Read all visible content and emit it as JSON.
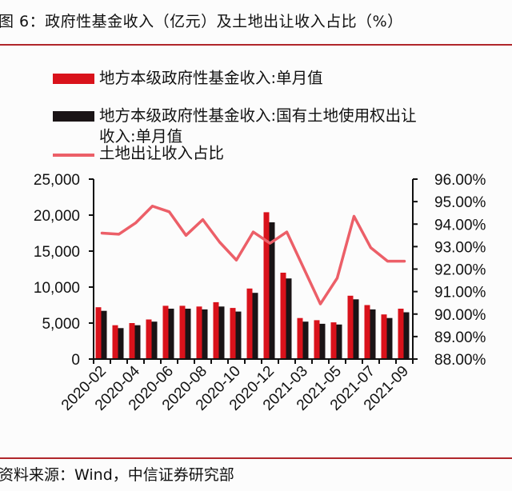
{
  "figure": {
    "title": "图 6：政府性基金收入（亿元）及土地出让收入占比（%）",
    "source": "资料来源：Wind，中信证券研究部"
  },
  "legend": [
    {
      "label": "地方本级政府性基金收入:单月值",
      "color": "#d9121b",
      "kind": "bar"
    },
    {
      "label": "地方本级政府性基金收入:国有土地使用权出让",
      "label_line2": "收入:单月值",
      "color": "#1a1416",
      "kind": "bar"
    },
    {
      "label": "土地出让收入占比",
      "color": "#ec5f68",
      "kind": "line"
    }
  ],
  "chart_data": {
    "type": "bar",
    "title": "政府性基金收入（亿元）及土地出让收入占比（%）",
    "xlabel": "",
    "ylabel": "",
    "categories": [
      "2020-02",
      "2020-03",
      "2020-04",
      "2020-05",
      "2020-06",
      "2020-07",
      "2020-08",
      "2020-09",
      "2020-10",
      "2020-11",
      "2020-12",
      "2021-02",
      "2021-03",
      "2021-04",
      "2021-05",
      "2021-06",
      "2021-07",
      "2021-08",
      "2021-09"
    ],
    "x_tick_labels": [
      "2020-02",
      "2020-04",
      "2020-06",
      "2020-08",
      "2020-10",
      "2020-12",
      "2021-03",
      "2021-05",
      "2021-07",
      "2021-09"
    ],
    "series": [
      {
        "name": "地方本级政府性基金收入:单月值",
        "type": "bar",
        "axis": "left",
        "color": "#d9121b",
        "values": [
          7200,
          4700,
          5000,
          5500,
          7400,
          7400,
          7300,
          7900,
          7100,
          9800,
          20400,
          12000,
          5700,
          5400,
          5100,
          8800,
          7500,
          6200,
          7000
        ]
      },
      {
        "name": "地方本级政府性基金收入:国有土地使用权出让收入:单月值",
        "type": "bar",
        "axis": "left",
        "color": "#1a1416",
        "values": [
          6700,
          4300,
          4700,
          5200,
          7000,
          7000,
          6900,
          7300,
          6600,
          9200,
          19000,
          11200,
          5200,
          4900,
          4800,
          8300,
          6900,
          5700,
          6500
        ]
      },
      {
        "name": "土地出让收入占比",
        "type": "line",
        "axis": "right",
        "color": "#ec5f68",
        "unit": "%",
        "values": [
          93.6,
          93.55,
          94.05,
          94.8,
          94.55,
          93.5,
          94.2,
          93.2,
          92.4,
          93.65,
          93.15,
          93.65,
          92.05,
          90.45,
          91.6,
          94.35,
          92.95,
          92.35,
          92.35
        ]
      }
    ],
    "left_axis": {
      "ylim": [
        0,
        25000
      ],
      "ticks": [
        0,
        5000,
        10000,
        15000,
        20000,
        25000
      ],
      "tick_labels": [
        "0",
        "5,000",
        "10,000",
        "15,000",
        "20,000",
        "25,000"
      ]
    },
    "right_axis": {
      "ylim": [
        88,
        96
      ],
      "ticks": [
        88,
        89,
        90,
        91,
        92,
        93,
        94,
        95,
        96
      ],
      "tick_labels": [
        "88.00%",
        "89.00%",
        "90.00%",
        "91.00%",
        "92.00%",
        "93.00%",
        "94.00%",
        "95.00%",
        "96.00%"
      ]
    },
    "grid": false,
    "legend_position": "top"
  }
}
